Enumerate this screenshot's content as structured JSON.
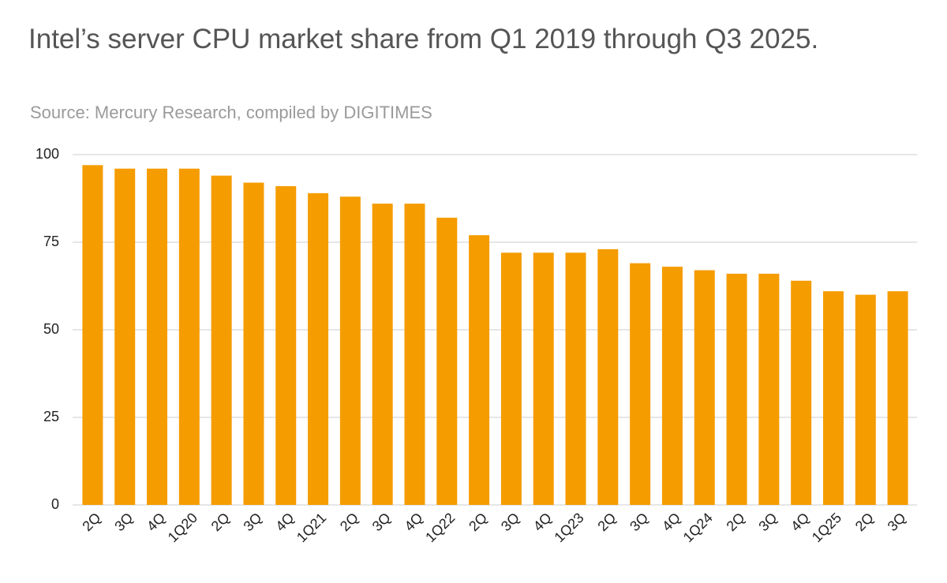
{
  "chart_data": {
    "type": "bar",
    "title": "Intel’s server CPU market share from Q1 2019 through Q3 2025.",
    "subtitle": "Source: Mercury Research, compiled by DIGITIMES",
    "categories": [
      "2Q",
      "3Q",
      "4Q",
      "1Q20",
      "2Q",
      "3Q",
      "4Q",
      "1Q21",
      "2Q",
      "3Q",
      "4Q",
      "1Q22",
      "2Q",
      "3Q",
      "4Q",
      "1Q23",
      "2Q",
      "3Q",
      "4Q",
      "1Q24",
      "2Q",
      "3Q",
      "4Q",
      "1Q25",
      "2Q",
      "3Q"
    ],
    "values": [
      97,
      96,
      96,
      96,
      94,
      92,
      91,
      89,
      88,
      86,
      86,
      82,
      77,
      72,
      72,
      72,
      73,
      69,
      68,
      67,
      66,
      66,
      64,
      61,
      60,
      61
    ],
    "color": "#f59c00",
    "ylim": [
      0,
      100
    ],
    "yticks": [
      0,
      25,
      50,
      75,
      100
    ],
    "grid": true
  }
}
